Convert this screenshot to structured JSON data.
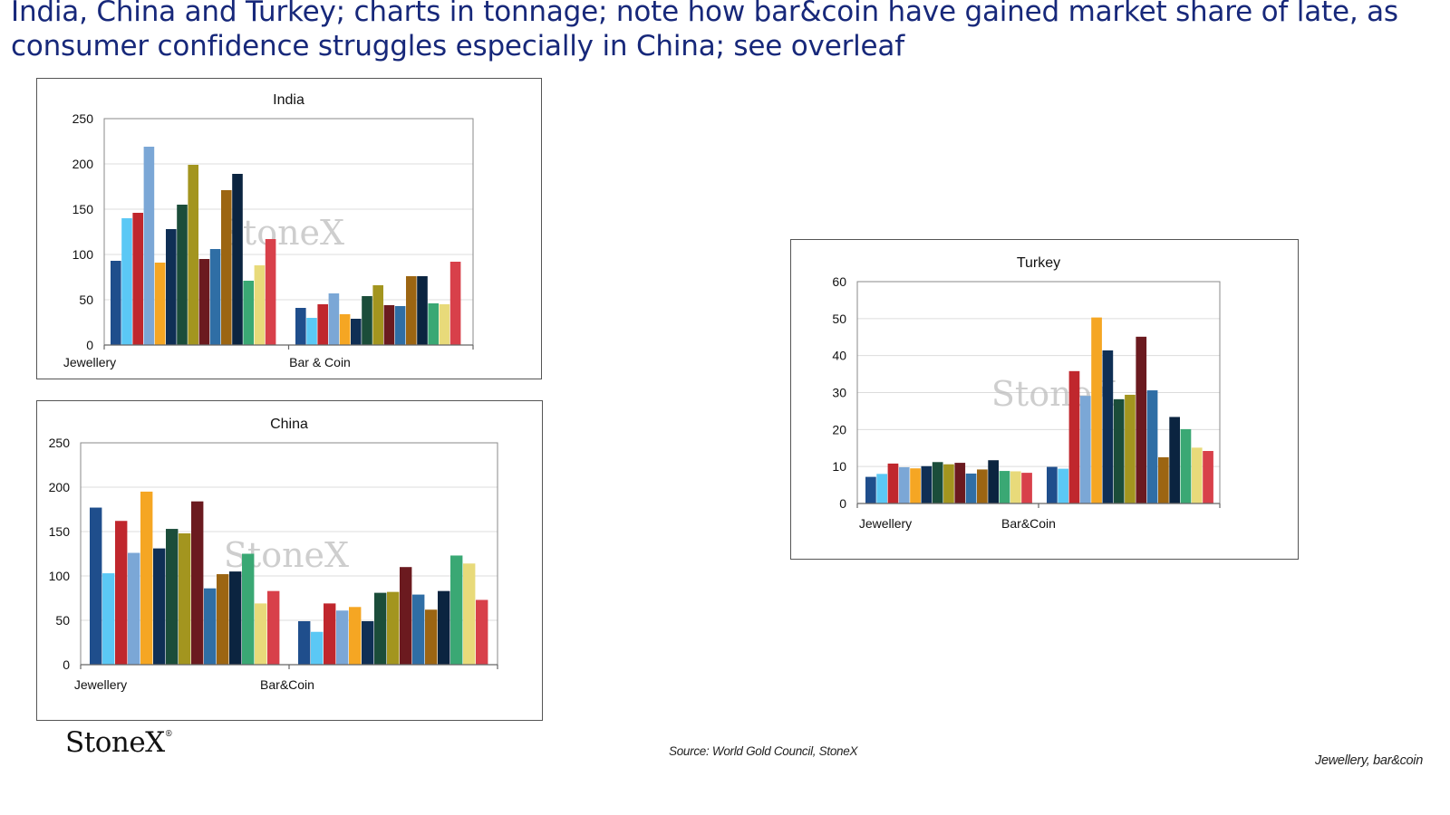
{
  "page": {
    "headline": "India, China and Turkey; charts in tonnage; note how bar&coin have gained market share of late, as consumer confidence struggles especially in China; see overleaf",
    "source": "Source: World Gold Council, StoneX",
    "section": "Jewellery, bar&coin",
    "logo": "StoneX"
  },
  "palette": [
    "#1f4e8c",
    "#5bc8f5",
    "#c0272d",
    "#7ba7d6",
    "#f5a623",
    "#0f2f55",
    "#1b4d3a",
    "#a3951f",
    "#6b1a1f",
    "#2f6ea5",
    "#9c6512",
    "#0b2440",
    "#3aa874",
    "#e8da7a",
    "#d8404a"
  ],
  "watermark": "StoneX",
  "chart_data": [
    {
      "type": "bar",
      "title": "India",
      "categories": [
        "Jewellery",
        "Bar & Coin"
      ],
      "ylim": [
        0,
        250
      ],
      "yticks": [
        0,
        50,
        100,
        150,
        200,
        250
      ],
      "grid": true,
      "legend": "none",
      "values": [
        [
          93,
          140,
          146,
          219,
          91,
          128,
          155,
          199,
          95,
          106,
          171,
          189,
          71,
          88,
          117
        ],
        [
          41,
          30,
          45,
          57,
          34,
          29,
          54,
          66,
          44,
          43,
          76,
          76,
          46,
          45,
          92
        ]
      ]
    },
    {
      "type": "bar",
      "title": "China",
      "categories": [
        "Jewellery",
        "Bar&Coin"
      ],
      "ylim": [
        0,
        250
      ],
      "yticks": [
        0,
        50,
        100,
        150,
        200,
        250
      ],
      "grid": true,
      "legend": "none",
      "values": [
        [
          177,
          103,
          162,
          126,
          195,
          131,
          153,
          148,
          184,
          86,
          102,
          105,
          125,
          69,
          83
        ],
        [
          49,
          37,
          69,
          61,
          65,
          49,
          81,
          82,
          110,
          79,
          62,
          83,
          123,
          114,
          73
        ]
      ]
    },
    {
      "type": "bar",
      "title": "Turkey",
      "categories": [
        "Jewellery",
        "Bar&Coin"
      ],
      "ylim": [
        0,
        60
      ],
      "yticks": [
        0,
        10,
        20,
        30,
        40,
        50,
        60
      ],
      "grid": true,
      "legend": "none",
      "values": [
        [
          7.2,
          8,
          10.8,
          9.8,
          9.5,
          10.1,
          11.2,
          10.6,
          11,
          8.1,
          9.2,
          11.7,
          8.8,
          8.7,
          8.3
        ],
        [
          9.9,
          9.4,
          35.8,
          29.1,
          50.3,
          41.4,
          28.2,
          29.4,
          45.1,
          30.6,
          12.5,
          23.4,
          20.1,
          15.1,
          14.2
        ]
      ]
    }
  ]
}
